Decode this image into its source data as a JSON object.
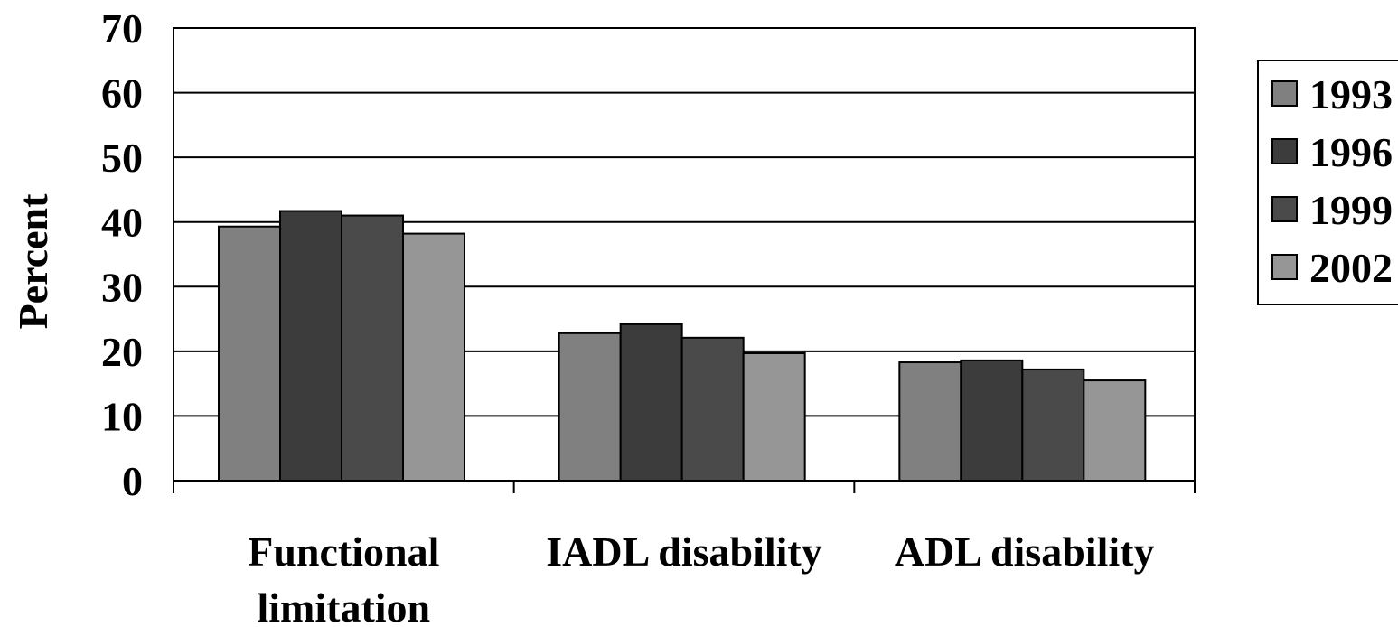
{
  "chart_data": {
    "type": "bar",
    "title": "",
    "xlabel": "",
    "ylabel": "Percent",
    "ylim": [
      0,
      70
    ],
    "yticks": [
      0,
      10,
      20,
      30,
      40,
      50,
      60,
      70
    ],
    "grid": true,
    "legend": "right",
    "categories": [
      [
        "Functional",
        "limitation"
      ],
      [
        "IADL disability"
      ],
      [
        "ADL disability"
      ]
    ],
    "series": [
      {
        "name": "1993",
        "values": [
          39.3,
          22.8,
          18.3
        ],
        "color": "#808080"
      },
      {
        "name": "1996",
        "values": [
          41.7,
          24.2,
          18.6
        ],
        "color": "#3c3c3c"
      },
      {
        "name": "1999",
        "values": [
          41.0,
          22.1,
          17.2
        ],
        "color": "#4a4a4a"
      },
      {
        "name": "2002",
        "values": [
          38.2,
          19.7,
          15.5
        ],
        "color": "#969696"
      }
    ]
  }
}
